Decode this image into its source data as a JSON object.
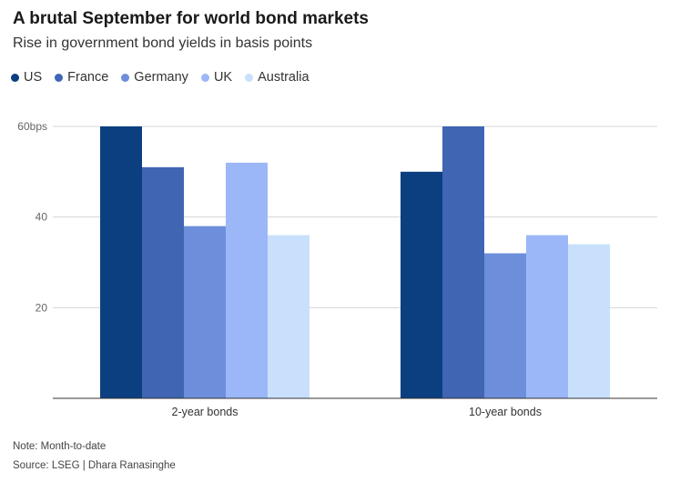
{
  "header": {
    "title": "A brutal September for world bond markets",
    "subtitle": "Rise in government bond yields in basis points"
  },
  "legend": [
    {
      "label": "US",
      "color": "#0b3f80"
    },
    {
      "label": "France",
      "color": "#3f65b3"
    },
    {
      "label": "Germany",
      "color": "#6d8edb"
    },
    {
      "label": "UK",
      "color": "#9bb7f7"
    },
    {
      "label": "Australia",
      "color": "#c8e0fb"
    }
  ],
  "footer": {
    "note": "Note: Month-to-date",
    "source": "Source: LSEG | Dhara Ranasinghe"
  },
  "chart_data": {
    "type": "bar",
    "categories": [
      "2-year bonds",
      "10-year bonds"
    ],
    "series": [
      {
        "name": "US",
        "color": "#0b3f80",
        "values": [
          60,
          50
        ]
      },
      {
        "name": "France",
        "color": "#3f65b3",
        "values": [
          51,
          60
        ]
      },
      {
        "name": "Germany",
        "color": "#6d8edb",
        "values": [
          38,
          32
        ]
      },
      {
        "name": "UK",
        "color": "#9bb7f7",
        "values": [
          52,
          36
        ]
      },
      {
        "name": "Australia",
        "color": "#c8e0fb",
        "values": [
          36,
          34
        ]
      }
    ],
    "yticks": [
      {
        "value": 20,
        "label": "20"
      },
      {
        "value": 40,
        "label": "40"
      },
      {
        "value": 60,
        "label": "60bps"
      }
    ],
    "ylim": [
      0,
      60
    ],
    "grid": true,
    "legend_position": "top-left"
  }
}
